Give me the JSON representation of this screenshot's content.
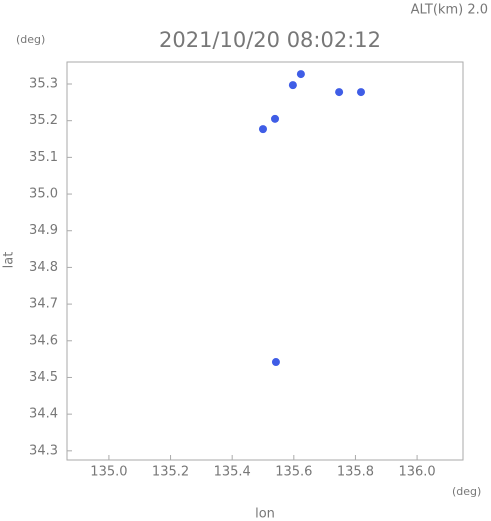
{
  "chart_data": {
    "type": "scatter",
    "title": "2021/10/20 08:02:12",
    "altitude_label": "ALT(km) 2.0",
    "x_unit": "(deg)",
    "y_unit": "(deg)",
    "x_label": "lon",
    "y_label": "lat",
    "x": [
      135.5,
      135.539,
      135.597,
      135.623,
      135.747,
      135.818,
      135.542
    ],
    "values": [
      35.177,
      35.205,
      35.297,
      35.327,
      35.278,
      35.278,
      34.542
    ],
    "color": "#3f5de6",
    "xlim": [
      134.864,
      136.149
    ],
    "ylim": [
      34.275,
      35.36
    ],
    "xticks": [
      {
        "value": 135,
        "label": "135.0"
      },
      135.2,
      135.4,
      135.6,
      135.8,
      {
        "value": 136,
        "label": "136.0"
      }
    ],
    "yticks": [
      34.3,
      34.4,
      34.5,
      34.6,
      34.7,
      34.8,
      34.9,
      {
        "value": 35,
        "label": "35.0"
      },
      35.1,
      35.2,
      35.3
    ]
  }
}
